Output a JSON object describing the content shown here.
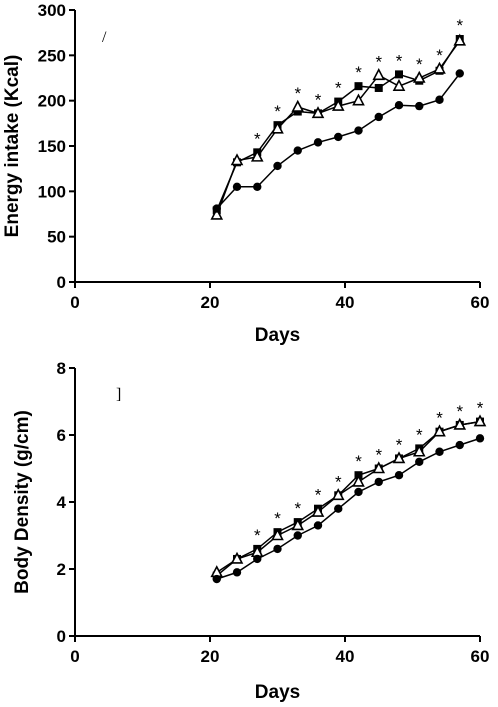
{
  "chart_data": [
    {
      "type": "line",
      "panel_letter": "/",
      "xlabel": "Days",
      "ylabel": "Energy intake (Kcal)",
      "xlim": [
        0,
        60
      ],
      "ylim": [
        0,
        300
      ],
      "xticks": [
        0,
        20,
        40,
        60
      ],
      "yticks": [
        0,
        50,
        100,
        150,
        200,
        250,
        300
      ],
      "x": [
        21,
        24,
        27,
        30,
        33,
        36,
        39,
        42,
        45,
        48,
        51,
        54,
        57
      ],
      "series": [
        {
          "marker": "square",
          "values": [
            79,
            132,
            143,
            173,
            188,
            186,
            199,
            216,
            214,
            229,
            222,
            233,
            268
          ]
        },
        {
          "marker": "triangle-open",
          "values": [
            74,
            134,
            138,
            169,
            193,
            186,
            194,
            200,
            228,
            216,
            225,
            235,
            266
          ]
        },
        {
          "marker": "circle",
          "values": [
            81,
            105,
            105,
            128,
            145,
            154,
            160,
            167,
            182,
            195,
            194,
            201,
            230
          ]
        }
      ],
      "significance_markers": [
        {
          "x": 27,
          "label": "*"
        },
        {
          "x": 30,
          "label": "*"
        },
        {
          "x": 33,
          "label": "*"
        },
        {
          "x": 36,
          "label": "*"
        },
        {
          "x": 39,
          "label": "*"
        },
        {
          "x": 42,
          "label": "*"
        },
        {
          "x": 45,
          "label": "*"
        },
        {
          "x": 48,
          "label": "*"
        },
        {
          "x": 51,
          "label": "*"
        },
        {
          "x": 54,
          "label": "*"
        },
        {
          "x": 57,
          "label": "*"
        }
      ],
      "grid": false
    },
    {
      "type": "line",
      "panel_letter": "]",
      "xlabel": "Days",
      "ylabel": "Body Density (g/cm)",
      "xlim": [
        0,
        60
      ],
      "ylim": [
        0,
        8
      ],
      "xticks": [
        0,
        20,
        40,
        60
      ],
      "yticks": [
        0,
        2,
        4,
        6,
        8
      ],
      "x": [
        21,
        24,
        27,
        30,
        33,
        36,
        39,
        42,
        45,
        48,
        51,
        54,
        57,
        60
      ],
      "series": [
        {
          "marker": "square",
          "values": [
            1.8,
            2.3,
            2.6,
            3.1,
            3.4,
            3.8,
            4.2,
            4.8,
            5.0,
            5.3,
            5.6,
            6.1,
            6.3,
            6.4
          ]
        },
        {
          "marker": "triangle-open",
          "values": [
            1.9,
            2.3,
            2.5,
            3.0,
            3.3,
            3.7,
            4.2,
            4.6,
            5.0,
            5.3,
            5.5,
            6.1,
            6.3,
            6.4
          ]
        },
        {
          "marker": "circle",
          "values": [
            1.7,
            1.9,
            2.3,
            2.6,
            3.0,
            3.3,
            3.8,
            4.3,
            4.6,
            4.8,
            5.2,
            5.5,
            5.7,
            5.9
          ]
        }
      ],
      "significance_markers": [
        {
          "x": 27,
          "label": "*"
        },
        {
          "x": 30,
          "label": "*"
        },
        {
          "x": 33,
          "label": "*"
        },
        {
          "x": 36,
          "label": "*"
        },
        {
          "x": 39,
          "label": "*"
        },
        {
          "x": 42,
          "label": "*"
        },
        {
          "x": 45,
          "label": "*"
        },
        {
          "x": 48,
          "label": "*"
        },
        {
          "x": 51,
          "label": "*"
        },
        {
          "x": 54,
          "label": "*"
        },
        {
          "x": 57,
          "label": "*"
        },
        {
          "x": 60,
          "label": "*"
        }
      ],
      "grid": false
    }
  ]
}
